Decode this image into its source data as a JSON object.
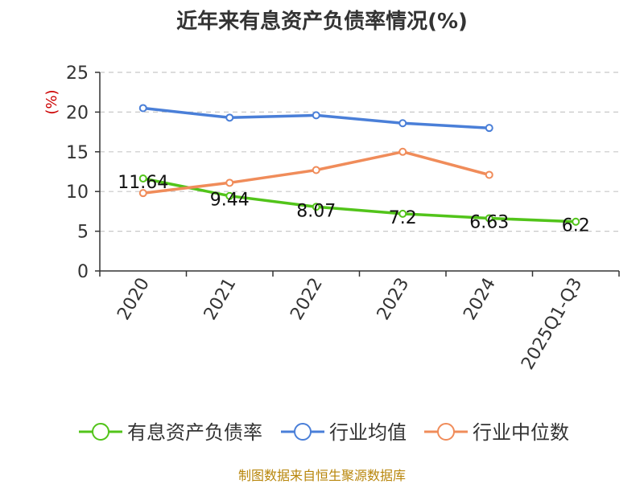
{
  "chart_data": {
    "type": "line",
    "title": "近年来有息资产负债率情况(%)",
    "ylabel": "(%)",
    "xlabel": "",
    "categories": [
      "2020",
      "2021",
      "2022",
      "2023",
      "2024",
      "2025Q1-Q3"
    ],
    "ylim": [
      0,
      25
    ],
    "yticks": [
      0,
      5,
      10,
      15,
      20,
      25
    ],
    "grid": true,
    "legend_position": "bottom",
    "series": [
      {
        "name": "有息资产负债率",
        "color": "#52c41a",
        "values": [
          11.64,
          9.44,
          8.07,
          7.2,
          6.63,
          6.2
        ],
        "labels": [
          "11.64",
          "9.44",
          "8.07",
          "7.2",
          "6.63",
          "6.2"
        ]
      },
      {
        "name": "行业均值",
        "color": "#4a7fd8",
        "values": [
          20.5,
          19.3,
          19.6,
          18.6,
          18.0,
          null
        ]
      },
      {
        "name": "行业中位数",
        "color": "#f08c5a",
        "values": [
          9.8,
          11.1,
          12.7,
          15.0,
          12.1,
          null
        ]
      }
    ]
  },
  "footer": {
    "source": "制图数据来自恒生聚源数据库"
  }
}
